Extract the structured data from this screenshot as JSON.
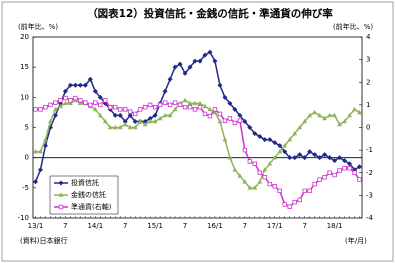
{
  "chart_data": {
    "type": "line",
    "title": "（図表12）投資信託・金銭の信託・準通貨の伸び率",
    "y_label": "(前年比、%)",
    "y2_label": "(前年比、%)",
    "x_label": "(年/月)",
    "source": "(資料)日本銀行",
    "categories": [
      "13/1",
      null,
      null,
      null,
      null,
      null,
      "7",
      null,
      null,
      null,
      null,
      null,
      "14/1",
      null,
      null,
      null,
      null,
      null,
      "7",
      null,
      null,
      null,
      null,
      null,
      "15/1",
      null,
      null,
      null,
      null,
      null,
      "7",
      null,
      null,
      null,
      null,
      null,
      "16/1",
      null,
      null,
      null,
      null,
      null,
      "7",
      null,
      null,
      null,
      null,
      null,
      "17/1",
      null,
      null,
      null,
      null,
      null,
      "7",
      null,
      null,
      null,
      null,
      null,
      "18/1",
      null,
      null,
      null,
      null,
      null
    ],
    "ylim": [
      -10,
      20
    ],
    "yticks": [
      -10,
      -5,
      0,
      5,
      10,
      15,
      20
    ],
    "y2lim": [
      -4,
      4
    ],
    "y2ticks": [
      -4,
      -3,
      -2,
      -1,
      0,
      1,
      2,
      3,
      4
    ],
    "series": [
      {
        "name": "投資信託",
        "color": "#1f2a8a",
        "marker": "diamond",
        "values": [
          -4,
          -2,
          2,
          5,
          7,
          9,
          11,
          12,
          12,
          12,
          12,
          13,
          11,
          10,
          9,
          8,
          7,
          7,
          6,
          7,
          6,
          6,
          6,
          6.5,
          7,
          9,
          11,
          13,
          15,
          15.5,
          14,
          15,
          16,
          16,
          17,
          17.5,
          16,
          12,
          10,
          9,
          8,
          7,
          6,
          5,
          4,
          3.5,
          3,
          3,
          2.5,
          2,
          1,
          0,
          0,
          0.5,
          0,
          1,
          0.5,
          0,
          0.5,
          0,
          -0.5,
          0,
          -0.5,
          -1,
          -2,
          -1.5
        ]
      },
      {
        "name": "金銭の信託",
        "color": "#8fb35a",
        "marker": "triangle",
        "values": [
          1,
          1,
          3,
          6,
          8,
          8.5,
          9,
          9,
          9.5,
          9,
          9,
          8.5,
          8,
          7,
          6,
          5,
          5,
          5,
          5.5,
          5,
          5,
          6,
          5.5,
          6,
          6,
          6.5,
          7,
          7,
          8,
          9,
          9.5,
          9,
          9,
          9,
          8.5,
          8,
          7.5,
          6,
          3,
          0,
          -2,
          -3,
          -4,
          -5,
          -5,
          -4,
          -2,
          -1,
          0,
          1,
          2,
          3,
          4,
          5,
          6,
          7,
          7.5,
          7,
          6.5,
          7,
          7,
          5.5,
          6,
          7,
          8,
          7.5
        ]
      },
      {
        "name": "準通貨(右軸)",
        "color": "#cc33cc",
        "marker": "square",
        "axis": "y2",
        "values": [
          0.8,
          0.8,
          0.9,
          1.0,
          1.1,
          1.2,
          1.3,
          1.2,
          1.3,
          1.2,
          1.1,
          1.0,
          1.1,
          1.0,
          1.2,
          0.9,
          0.9,
          0.8,
          0.8,
          0.7,
          0.6,
          0.8,
          0.9,
          1.0,
          0.9,
          1.0,
          1.1,
          1.0,
          1.1,
          1.0,
          0.9,
          0.9,
          0.8,
          0.9,
          0.6,
          0.5,
          0.8,
          0.6,
          0.3,
          0.4,
          0.2,
          0.3,
          -1.0,
          -1.5,
          -1.6,
          -2.0,
          -2.2,
          -2.5,
          -2.6,
          -2.8,
          -3.4,
          -3.5,
          -3.3,
          -3.2,
          -2.8,
          -2.8,
          -2.5,
          -2.3,
          -2.2,
          -2.0,
          -2.1,
          -1.9,
          -1.8,
          -1.8,
          -2.0,
          -2.3
        ]
      }
    ]
  }
}
